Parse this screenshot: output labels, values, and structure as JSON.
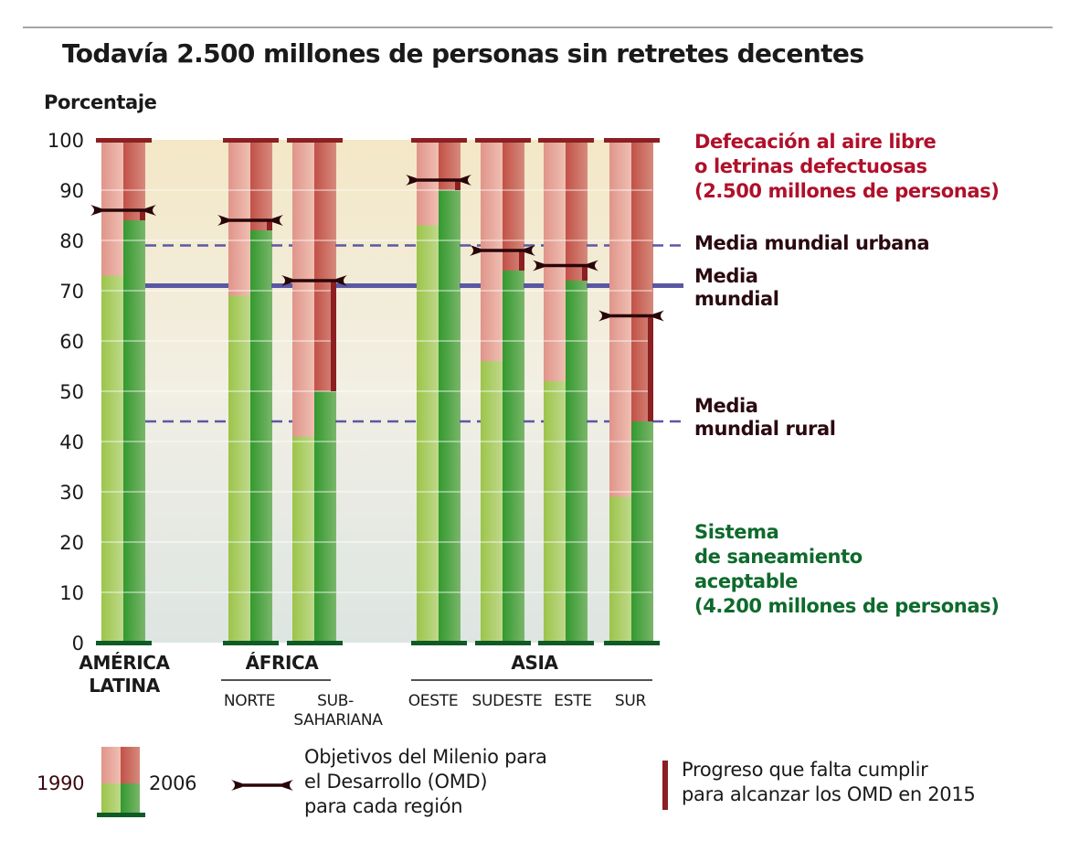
{
  "chart_data": {
    "type": "bar",
    "title": "Todavía 2.500 millones de personas sin retretes decentes",
    "ylabel": "Porcentaje",
    "ylim": [
      0,
      100
    ],
    "yticks": [
      "0",
      "10",
      "20",
      "30",
      "40",
      "50",
      "60",
      "70",
      "80",
      "90",
      "100"
    ],
    "grid": true,
    "groups": [
      {
        "label": "AMÉRICA LATINA",
        "lines": [
          "AMÉRICA",
          "LATINA"
        ],
        "subregions": [
          0
        ]
      },
      {
        "label": "ÁFRICA",
        "lines": [
          "ÁFRICA"
        ],
        "subregions": [
          1,
          2
        ]
      },
      {
        "label": "ASIA",
        "lines": [
          "ASIA"
        ],
        "subregions": [
          3,
          4,
          5,
          6
        ]
      }
    ],
    "categories": [
      {
        "id": "america-latina",
        "label": "",
        "label_lines": []
      },
      {
        "id": "africa-norte",
        "label": "NORTE",
        "label_lines": [
          "NORTE"
        ]
      },
      {
        "id": "africa-subsahariana",
        "label": "SUB-SAHARIANA",
        "label_lines": [
          "SUB-",
          "SAHARIANA"
        ]
      },
      {
        "id": "asia-oeste",
        "label": "OESTE",
        "label_lines": [
          "OESTE"
        ]
      },
      {
        "id": "asia-sudeste",
        "label": "SUDESTE",
        "label_lines": [
          "SUDESTE"
        ]
      },
      {
        "id": "asia-este",
        "label": "ESTE",
        "label_lines": [
          "ESTE"
        ]
      },
      {
        "id": "asia-sur",
        "label": "SUR",
        "label_lines": [
          "SUR"
        ]
      }
    ],
    "series": [
      {
        "name": "1990",
        "description": "Sistema de saneamiento aceptable 1990",
        "values": [
          73,
          69,
          41,
          83,
          56,
          52,
          29
        ]
      },
      {
        "name": "2006",
        "description": "Sistema de saneamiento aceptable 2006",
        "values": [
          84,
          82,
          50,
          90,
          74,
          72,
          44
        ]
      },
      {
        "name": "Objetivos del Milenio (OMD)",
        "values": [
          86,
          84,
          72,
          92,
          78,
          75,
          65
        ]
      }
    ],
    "reference_lines": [
      {
        "name": "Media mundial urbana",
        "value": 79,
        "style": "dashed"
      },
      {
        "name": "Media mundial",
        "value": 71,
        "style": "solid"
      },
      {
        "name": "Media mundial rural",
        "value": 44,
        "style": "dashed"
      }
    ],
    "annotations": {
      "top": [
        "Defecación al aire libre",
        "o letrinas defectuosas",
        "(2.500 millones de personas)"
      ],
      "urban": [
        "Media mundial urbana"
      ],
      "world": [
        "Media",
        "mundial"
      ],
      "rural": [
        "Media",
        "mundial rural"
      ],
      "bottom": [
        "Sistema",
        "de saneamiento",
        "aceptable",
        "(4.200 millones de personas)"
      ]
    },
    "legend": {
      "year1": "1990",
      "year2": "2006",
      "goal_lines": [
        "Objetivos del Milenio para",
        "el Desarrollo (OMD)",
        "para cada región"
      ],
      "progress_lines": [
        "Progreso que falta cumplir",
        "para alcanzar los OMD en 2015"
      ]
    },
    "colors": {
      "red_light": "#e8a598",
      "red_dark": "#c9625a",
      "green_light": "#a3c95a",
      "green_dark": "#3a9b35",
      "cap_top": "#8b1f22",
      "cap_bottom": "#0f5a25",
      "goal": "#2a0508",
      "progress": "#8b1f22",
      "avg_line": "#5a58a3",
      "text_red": "#b0102a",
      "text_green": "#0e6a2c"
    }
  }
}
